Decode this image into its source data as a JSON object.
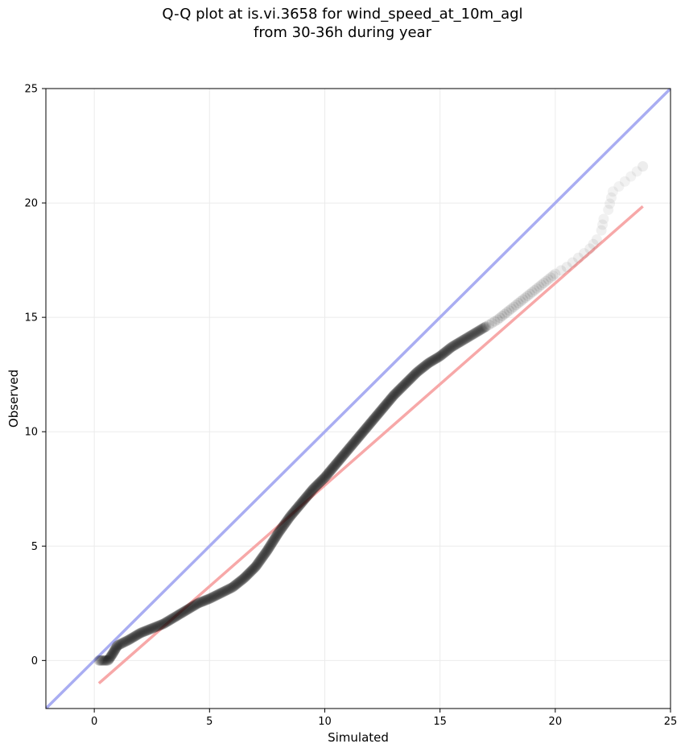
{
  "title_line1": "Q-Q plot at is.vi.3658 for wind_speed_at_10m_agl",
  "title_line2": "from 30-36h during year",
  "chart_data": {
    "type": "scatter",
    "xlabel": "Simulated",
    "ylabel": "Observed",
    "xlim": [
      -2.1,
      25
    ],
    "ylim": [
      -2.1,
      25
    ],
    "xticks": [
      0,
      5,
      10,
      15,
      20,
      25
    ],
    "yticks": [
      0,
      5,
      10,
      15,
      20,
      25
    ],
    "grid": true,
    "colors": {
      "points": "#000000",
      "identity_line": "#a9adf2",
      "fit_line": "#f7a8a8"
    },
    "identity_line": {
      "x": [
        -2.1,
        25
      ],
      "y": [
        -2.1,
        25
      ]
    },
    "fit_line": {
      "x": [
        0.2,
        23.8
      ],
      "y": [
        -1.0,
        19.85
      ]
    },
    "quantile_curve": {
      "x": [
        0.2,
        0.6,
        0.8,
        1.0,
        1.5,
        2.0,
        2.5,
        3.0,
        3.5,
        4.0,
        4.5,
        5.0,
        5.5,
        6.0,
        6.5,
        7.0,
        7.5,
        8.0,
        8.5,
        9.0,
        9.5,
        10.0,
        10.5,
        11.0,
        11.5,
        12.0,
        12.5,
        13.0,
        13.5,
        14.0,
        14.5,
        15.0,
        15.5,
        16.0,
        16.5,
        17.0,
        17.5,
        18.0,
        18.5,
        19.0,
        19.5,
        20.0,
        20.5,
        21.0,
        21.5,
        21.8,
        22.0,
        22.1,
        22.3,
        22.5,
        23.8
      ],
      "y": [
        0.0,
        0.0,
        0.3,
        0.65,
        0.9,
        1.2,
        1.4,
        1.6,
        1.9,
        2.2,
        2.5,
        2.7,
        2.95,
        3.2,
        3.6,
        4.1,
        4.8,
        5.6,
        6.3,
        6.9,
        7.5,
        8.0,
        8.6,
        9.2,
        9.8,
        10.4,
        11.0,
        11.6,
        12.1,
        12.6,
        13.0,
        13.3,
        13.7,
        14.0,
        14.3,
        14.6,
        14.9,
        15.3,
        15.7,
        16.1,
        16.5,
        16.9,
        17.2,
        17.6,
        18.0,
        18.4,
        18.8,
        19.3,
        19.7,
        20.5,
        21.6
      ]
    }
  }
}
